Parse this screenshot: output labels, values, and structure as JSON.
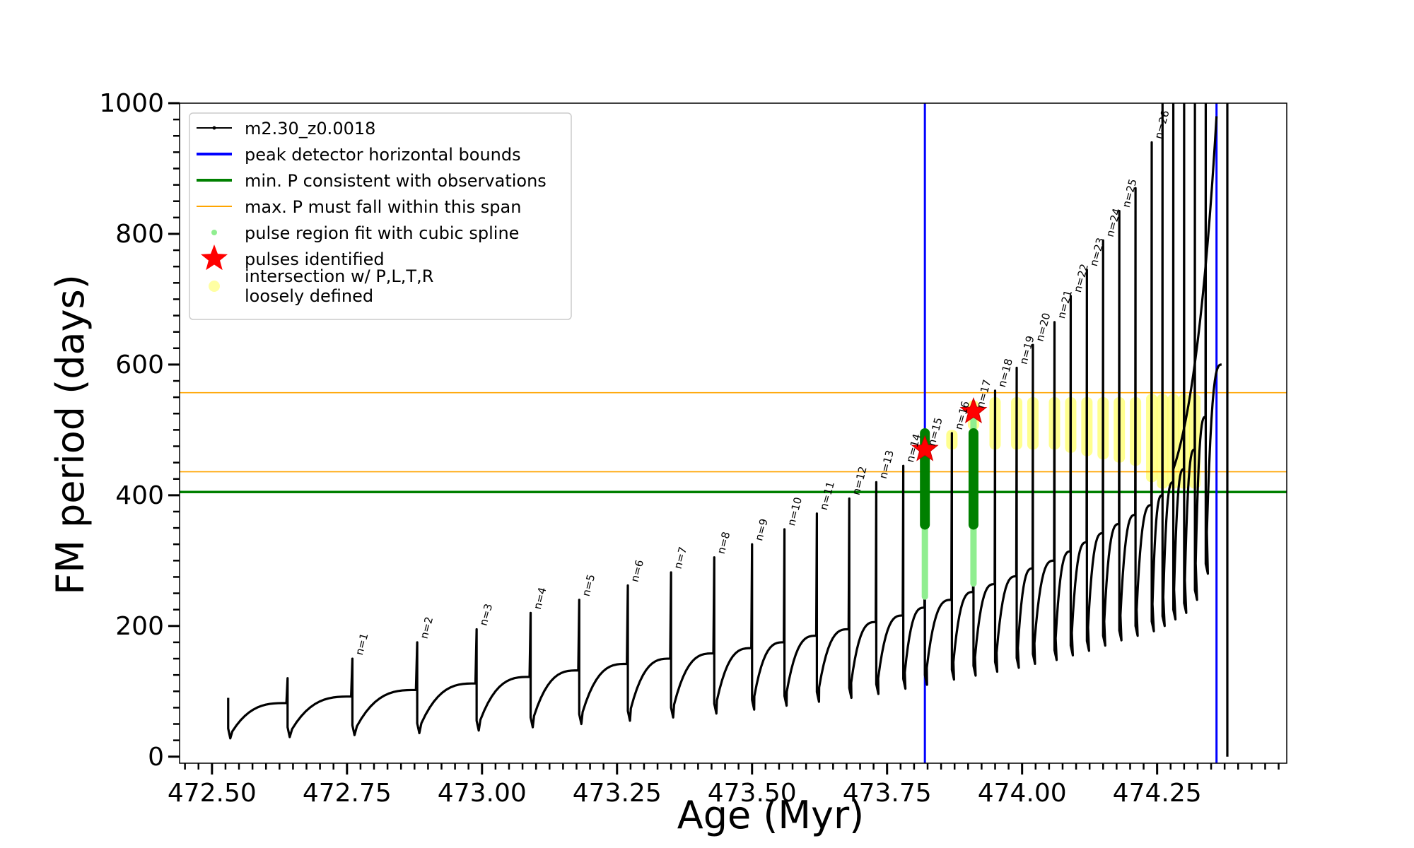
{
  "chart_data": {
    "type": "line",
    "xlabel": "Age (Myr)",
    "ylabel": "FM period (days)",
    "xlim": [
      472.44,
      474.49
    ],
    "ylim": [
      -10,
      1000
    ],
    "x_ticks": [
      472.5,
      472.75,
      473.0,
      473.25,
      473.5,
      473.75,
      474.0,
      474.25
    ],
    "x_tick_labels": [
      "472.50",
      "472.75",
      "473.00",
      "473.25",
      "473.50",
      "473.75",
      "474.00",
      "474.25"
    ],
    "y_ticks": [
      0,
      200,
      400,
      600,
      800,
      1000
    ],
    "y_tick_labels": [
      "0",
      "200",
      "400",
      "600",
      "800",
      "1000"
    ],
    "grid": false,
    "legend_position": "top-left",
    "legend": [
      {
        "label": "m2.30_z0.0018",
        "color": "#000000",
        "marker": "line-dot"
      },
      {
        "label": "peak detector horizontal bounds",
        "color": "#0000ff",
        "marker": "line"
      },
      {
        "label": "min. P consistent with observations",
        "color": "#008000",
        "marker": "line"
      },
      {
        "label": "max. P must fall within this span",
        "color": "#ffa500",
        "marker": "thin-line"
      },
      {
        "label": "pulse region fit with cubic spline",
        "color": "#90ee90",
        "marker": "dot"
      },
      {
        "label": "pulses identified",
        "color": "#ff0000",
        "marker": "star"
      },
      {
        "label_lines": [
          "intersection w/ P,L,T,R",
          "loosely defined"
        ],
        "color": "#ffff66",
        "marker": "circle"
      }
    ],
    "series": [
      {
        "name": "m2.30_z0.0018",
        "color": "#000000",
        "pulses": [
          {
            "age": 472.53,
            "peak": 90,
            "base": 68,
            "min": 28
          },
          {
            "age": 472.64,
            "peak": 120,
            "base": 82,
            "min": 30
          },
          {
            "age": 472.76,
            "peak": 150,
            "base": 92,
            "min": 33
          },
          {
            "age": 472.88,
            "peak": 175,
            "base": 102,
            "min": 36
          },
          {
            "age": 472.99,
            "peak": 195,
            "base": 112,
            "min": 40
          },
          {
            "age": 473.09,
            "peak": 220,
            "base": 122,
            "min": 45
          },
          {
            "age": 473.18,
            "peak": 240,
            "base": 132,
            "min": 50
          },
          {
            "age": 473.27,
            "peak": 262,
            "base": 142,
            "min": 55
          },
          {
            "age": 473.35,
            "peak": 282,
            "base": 150,
            "min": 60
          },
          {
            "age": 473.43,
            "peak": 305,
            "base": 158,
            "min": 66
          },
          {
            "age": 473.5,
            "peak": 325,
            "base": 166,
            "min": 72
          },
          {
            "age": 473.56,
            "peak": 348,
            "base": 175,
            "min": 78
          },
          {
            "age": 473.62,
            "peak": 372,
            "base": 185,
            "min": 84
          },
          {
            "age": 473.68,
            "peak": 395,
            "base": 195,
            "min": 90
          },
          {
            "age": 473.73,
            "peak": 420,
            "base": 206,
            "min": 96
          },
          {
            "age": 473.78,
            "peak": 445,
            "base": 216,
            "min": 104
          },
          {
            "age": 473.82,
            "peak": 470,
            "base": 228,
            "min": 110
          },
          {
            "age": 473.87,
            "peak": 495,
            "base": 240,
            "min": 118
          },
          {
            "age": 473.91,
            "peak": 528,
            "base": 252,
            "min": 124
          },
          {
            "age": 473.95,
            "peak": 560,
            "base": 264,
            "min": 130
          },
          {
            "age": 473.99,
            "peak": 595,
            "base": 276,
            "min": 136
          },
          {
            "age": 474.02,
            "peak": 630,
            "base": 288,
            "min": 142
          },
          {
            "age": 474.06,
            "peak": 665,
            "base": 300,
            "min": 148
          },
          {
            "age": 474.09,
            "peak": 705,
            "base": 314,
            "min": 155
          },
          {
            "age": 474.12,
            "peak": 745,
            "base": 328,
            "min": 162
          },
          {
            "age": 474.15,
            "peak": 790,
            "base": 342,
            "min": 170
          },
          {
            "age": 474.18,
            "peak": 835,
            "base": 356,
            "min": 178
          },
          {
            "age": 474.21,
            "peak": 870,
            "base": 370,
            "min": 185
          },
          {
            "age": 474.24,
            "peak": 940,
            "base": 385,
            "min": 192
          },
          {
            "age": 474.26,
            "peak": 1000,
            "base": 400,
            "min": 200
          },
          {
            "age": 474.28,
            "peak": 1000,
            "base": 420,
            "min": 210
          },
          {
            "age": 474.3,
            "peak": 1000,
            "base": 440,
            "min": 220
          },
          {
            "age": 474.32,
            "peak": 1000,
            "base": 470,
            "min": 240
          },
          {
            "age": 474.34,
            "peak": 1000,
            "base": 520,
            "min": 280
          }
        ],
        "final_branch": {
          "age": 474.38,
          "min": 0,
          "max": 1000
        }
      }
    ],
    "pulse_labels": [
      {
        "label": "n=1",
        "age": 472.76,
        "value": 150
      },
      {
        "label": "n=2",
        "age": 472.88,
        "value": 175
      },
      {
        "label": "n=3",
        "age": 472.99,
        "value": 195
      },
      {
        "label": "n=4",
        "age": 473.09,
        "value": 220
      },
      {
        "label": "n=5",
        "age": 473.18,
        "value": 240
      },
      {
        "label": "n=6",
        "age": 473.27,
        "value": 262
      },
      {
        "label": "n=7",
        "age": 473.35,
        "value": 282
      },
      {
        "label": "n=8",
        "age": 473.43,
        "value": 305
      },
      {
        "label": "n=9",
        "age": 473.5,
        "value": 325
      },
      {
        "label": "n=10",
        "age": 473.56,
        "value": 348
      },
      {
        "label": "n=11",
        "age": 473.62,
        "value": 372
      },
      {
        "label": "n=12",
        "age": 473.68,
        "value": 395
      },
      {
        "label": "n=13",
        "age": 473.73,
        "value": 420
      },
      {
        "label": "n=14",
        "age": 473.78,
        "value": 445
      },
      {
        "label": "n=15",
        "age": 473.82,
        "value": 470
      },
      {
        "label": "n=16",
        "age": 473.87,
        "value": 495
      },
      {
        "label": "n=17",
        "age": 473.91,
        "value": 528
      },
      {
        "label": "n=18",
        "age": 473.95,
        "value": 560
      },
      {
        "label": "n=19",
        "age": 473.99,
        "value": 595
      },
      {
        "label": "n=20",
        "age": 474.02,
        "value": 630
      },
      {
        "label": "n=21",
        "age": 474.06,
        "value": 665
      },
      {
        "label": "n=22",
        "age": 474.09,
        "value": 705
      },
      {
        "label": "n=23",
        "age": 474.12,
        "value": 745
      },
      {
        "label": "n=24",
        "age": 474.15,
        "value": 790
      },
      {
        "label": "n=25",
        "age": 474.18,
        "value": 835
      },
      {
        "label": "n=26",
        "age": 474.24,
        "value": 940
      }
    ],
    "vertical_lines": [
      {
        "x": 473.82,
        "color": "#0000ff"
      },
      {
        "x": 474.36,
        "color": "#0000ff"
      }
    ],
    "horizontal_lines": [
      {
        "y": 405,
        "color": "#008000"
      },
      {
        "y": 436,
        "color": "#ffa500"
      },
      {
        "y": 557,
        "color": "#ffa500"
      }
    ],
    "spline_regions": [
      {
        "age": 473.82,
        "from": 245,
        "to": 495,
        "color": "#90ee90"
      },
      {
        "age": 473.91,
        "from": 265,
        "to": 530,
        "color": "#90ee90"
      }
    ],
    "observed_regions": [
      {
        "age": 473.82,
        "from": 355,
        "to": 495,
        "color": "#008000"
      },
      {
        "age": 473.91,
        "from": 355,
        "to": 495,
        "color": "#008000"
      }
    ],
    "identified_pulses": [
      {
        "age": 473.82,
        "value": 470,
        "color": "#ff0000"
      },
      {
        "age": 473.91,
        "value": 528,
        "color": "#ff0000"
      }
    ],
    "intersection_regions": [
      {
        "age": 473.87,
        "from": 470,
        "to": 500
      },
      {
        "age": 473.91,
        "from": 500,
        "to": 545
      },
      {
        "age": 473.95,
        "from": 470,
        "to": 550
      },
      {
        "age": 473.99,
        "from": 470,
        "to": 550
      },
      {
        "age": 474.02,
        "from": 470,
        "to": 550
      },
      {
        "age": 474.06,
        "from": 470,
        "to": 550
      },
      {
        "age": 474.09,
        "from": 465,
        "to": 550
      },
      {
        "age": 474.12,
        "from": 460,
        "to": 550
      },
      {
        "age": 474.15,
        "from": 455,
        "to": 550
      },
      {
        "age": 474.18,
        "from": 450,
        "to": 550
      },
      {
        "age": 474.21,
        "from": 445,
        "to": 550
      },
      {
        "age": 474.24,
        "from": 420,
        "to": 555
      },
      {
        "age": 474.26,
        "from": 410,
        "to": 555
      },
      {
        "age": 474.28,
        "from": 410,
        "to": 555
      },
      {
        "age": 474.3,
        "from": 410,
        "to": 555
      },
      {
        "age": 474.32,
        "from": 410,
        "to": 555
      }
    ]
  }
}
